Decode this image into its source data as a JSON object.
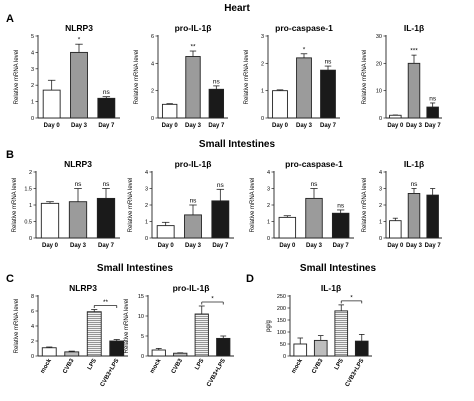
{
  "sections": [
    {
      "id": "heart",
      "title": "Heart"
    },
    {
      "id": "small-intestines-b",
      "title": "Small Intestines"
    },
    {
      "id": "small-intestines-c",
      "title": "Small Intestines"
    },
    {
      "id": "small-intestines-d",
      "title": "Small Intestines"
    }
  ],
  "panels": [
    {
      "id": "A",
      "letter": "A"
    },
    {
      "id": "B",
      "letter": "B"
    },
    {
      "id": "C",
      "letter": "C"
    },
    {
      "id": "D",
      "letter": "D"
    }
  ],
  "colors": {
    "white": "#ffffff",
    "gray": "#9b9b9b",
    "black": "#1a1a1a",
    "light_gray": "#bdbdbd",
    "striped": "#cfcfcf",
    "axis": "#222222"
  },
  "chart_data": [
    {
      "type": "bar",
      "panel": "A",
      "title": "NLRP3",
      "ylabel": "Relative mRNA level",
      "ylim": [
        0,
        5
      ],
      "yticks": [
        0,
        1,
        2,
        3,
        4,
        5
      ],
      "categories": [
        "Day 0",
        "Day 3",
        "Day 7"
      ],
      "values": [
        1.7,
        4.0,
        1.2
      ],
      "errors": [
        0.6,
        0.5,
        0.1
      ],
      "fills": [
        "white",
        "gray",
        "black"
      ],
      "significance": [
        "",
        "*",
        "ns"
      ]
    },
    {
      "type": "bar",
      "panel": "A",
      "title": "pro-IL-1β",
      "ylabel": "Relative mRNA level",
      "ylim": [
        0,
        6
      ],
      "yticks": [
        0,
        2,
        4,
        6
      ],
      "categories": [
        "Day 0",
        "Day 3",
        "Day 7"
      ],
      "values": [
        1.0,
        4.5,
        2.1
      ],
      "errors": [
        0.05,
        0.4,
        0.25
      ],
      "fills": [
        "white",
        "gray",
        "black"
      ],
      "significance": [
        "",
        "**",
        "ns"
      ]
    },
    {
      "type": "bar",
      "panel": "A",
      "title": "pro-caspase-1",
      "ylabel": "Relative mRNA level",
      "ylim": [
        0,
        3
      ],
      "yticks": [
        0,
        1,
        2,
        3
      ],
      "categories": [
        "Day 0",
        "Day 3",
        "Day 7"
      ],
      "values": [
        1.0,
        2.2,
        1.75
      ],
      "errors": [
        0.03,
        0.15,
        0.15
      ],
      "fills": [
        "white",
        "gray",
        "black"
      ],
      "significance": [
        "",
        "*",
        "ns"
      ]
    },
    {
      "type": "bar",
      "panel": "A",
      "title": "IL-1β",
      "ylabel": "Relative mRNA level",
      "ylim": [
        0,
        30
      ],
      "yticks": [
        0,
        10,
        20,
        30
      ],
      "categories": [
        "Day 0",
        "Day 3",
        "Day 7"
      ],
      "values": [
        1.0,
        20.0,
        4.0
      ],
      "errors": [
        0.1,
        3.0,
        1.5
      ],
      "fills": [
        "white",
        "gray",
        "black"
      ],
      "significance": [
        "",
        "***",
        "ns"
      ]
    },
    {
      "type": "bar",
      "panel": "B",
      "title": "NLRP3",
      "ylabel": "Relative mRNA level",
      "ylim": [
        0,
        2.0
      ],
      "yticks": [
        0,
        0.5,
        1.0,
        1.5,
        2.0
      ],
      "categories": [
        "Day 0",
        "Day 3",
        "Day 7"
      ],
      "values": [
        1.05,
        1.1,
        1.2
      ],
      "errors": [
        0.05,
        0.4,
        0.3
      ],
      "fills": [
        "white",
        "gray",
        "black"
      ],
      "significance": [
        "",
        "ns",
        "ns"
      ]
    },
    {
      "type": "bar",
      "panel": "B",
      "title": "pro-IL-1β",
      "ylabel": "Relative mRNA level",
      "ylim": [
        0,
        4
      ],
      "yticks": [
        0,
        1,
        2,
        3,
        4
      ],
      "categories": [
        "Day 0",
        "Day 3",
        "Day 7"
      ],
      "values": [
        0.75,
        1.4,
        2.25
      ],
      "errors": [
        0.2,
        0.6,
        0.7
      ],
      "fills": [
        "white",
        "gray",
        "black"
      ],
      "significance": [
        "",
        "ns",
        "ns"
      ]
    },
    {
      "type": "bar",
      "panel": "B",
      "title": "pro-caspase-1",
      "ylabel": "Relative mRNA level",
      "ylim": [
        0,
        4
      ],
      "yticks": [
        0,
        1,
        2,
        3,
        4
      ],
      "categories": [
        "Day 0",
        "Day 3",
        "Day 7"
      ],
      "values": [
        1.25,
        2.4,
        1.5
      ],
      "errors": [
        0.1,
        0.6,
        0.2
      ],
      "fills": [
        "white",
        "gray",
        "black"
      ],
      "significance": [
        "",
        "ns",
        "ns"
      ]
    },
    {
      "type": "bar",
      "panel": "B",
      "title": "IL-1β",
      "ylabel": "Relative mRNA level",
      "ylim": [
        0,
        4
      ],
      "yticks": [
        0,
        1,
        2,
        3,
        4
      ],
      "categories": [
        "Day 0",
        "Day 3",
        "Day 7"
      ],
      "values": [
        1.05,
        2.7,
        2.6
      ],
      "errors": [
        0.15,
        0.3,
        0.4
      ],
      "fills": [
        "white",
        "gray",
        "black"
      ],
      "significance": [
        "",
        "ns",
        ""
      ]
    },
    {
      "type": "bar",
      "panel": "C",
      "title": "NLRP3",
      "ylabel": "Relative mRNA level",
      "ylim": [
        0,
        8
      ],
      "yticks": [
        0,
        2,
        4,
        6,
        8
      ],
      "categories": [
        "mock",
        "CVB3",
        "LPS",
        "CVB3+LPS"
      ],
      "values": [
        1.1,
        0.55,
        5.9,
        2.0
      ],
      "errors": [
        0.1,
        0.1,
        0.3,
        0.2
      ],
      "fills": [
        "white",
        "light_gray",
        "striped",
        "black"
      ],
      "bracket": {
        "from": 2,
        "to": 3,
        "label": "**"
      }
    },
    {
      "type": "bar",
      "panel": "C",
      "title": "pro-IL-1β",
      "ylabel": "Relative mRNA level",
      "ylim": [
        0,
        15
      ],
      "yticks": [
        0,
        5,
        10,
        15
      ],
      "categories": [
        "mock",
        "CVB3",
        "LPS",
        "CVB3+LPS"
      ],
      "values": [
        1.5,
        0.7,
        10.5,
        4.4
      ],
      "errors": [
        0.4,
        0.1,
        2.0,
        0.6
      ],
      "fills": [
        "white",
        "light_gray",
        "striped",
        "black"
      ],
      "bracket": {
        "from": 2,
        "to": 3,
        "label": "*"
      }
    },
    {
      "type": "bar",
      "panel": "D",
      "title": "IL-1β",
      "ylabel": "pg/g",
      "ylim": [
        0,
        250
      ],
      "yticks": [
        0,
        50,
        100,
        150,
        200,
        250
      ],
      "categories": [
        "mock",
        "CVB3",
        "LPS",
        "CVB3+LPS"
      ],
      "values": [
        50,
        65,
        188,
        62
      ],
      "errors": [
        25,
        20,
        25,
        28
      ],
      "fills": [
        "white",
        "light_gray",
        "striped",
        "black"
      ],
      "bracket": {
        "from": 2,
        "to": 3,
        "label": "*"
      }
    }
  ]
}
